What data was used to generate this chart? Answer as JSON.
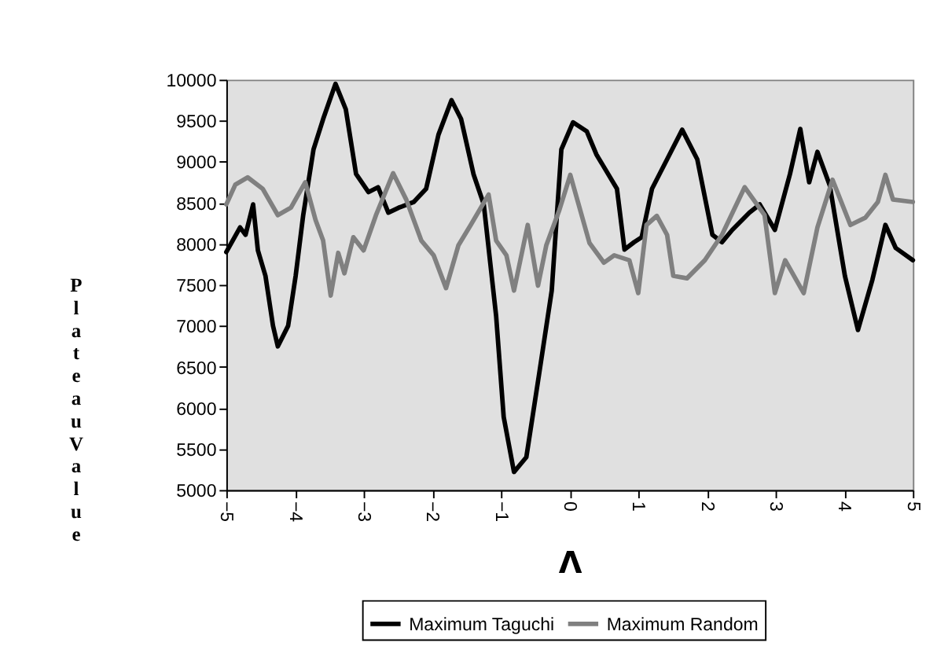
{
  "chart_data": {
    "type": "line",
    "xlabel": "Λ",
    "ylabel": "Plateau Value",
    "xlim": [
      -5,
      5
    ],
    "xticks": [
      -5,
      -4,
      -3,
      -2,
      -1,
      0,
      1,
      2,
      3,
      4,
      5
    ],
    "ylim": [
      5000,
      10000
    ],
    "yticks": [
      5000,
      5500,
      6000,
      6500,
      7000,
      7500,
      8000,
      8500,
      9000,
      9500,
      10000
    ],
    "grid": false,
    "legend": "bottom",
    "marker": "none",
    "line_style": "solid",
    "series": [
      {
        "name": "Maximum Taguchi",
        "color": "#000000",
        "x": [
          -5.0,
          -4.8,
          -4.72,
          -4.61,
          -4.54,
          -4.43,
          -4.32,
          -4.25,
          -4.1,
          -3.99,
          -3.88,
          -3.73,
          -3.59,
          -3.41,
          -3.26,
          -3.11,
          -2.93,
          -2.79,
          -2.64,
          -2.49,
          -2.27,
          -2.09,
          -1.91,
          -1.72,
          -1.58,
          -1.4,
          -1.25,
          -1.07,
          -0.96,
          -0.81,
          -0.63,
          -0.45,
          -0.26,
          -0.12,
          0.05,
          0.25,
          0.39,
          0.69,
          0.8,
          0.94,
          1.05,
          1.2,
          1.42,
          1.64,
          1.86,
          2.08,
          2.22,
          2.37,
          2.62,
          2.77,
          2.99,
          3.21,
          3.36,
          3.49,
          3.61,
          3.79,
          4.01,
          4.2,
          4.41,
          4.6,
          4.75,
          5.0
        ],
        "values": [
          7900,
          8200,
          8110,
          8480,
          7920,
          7610,
          7000,
          6750,
          7000,
          7610,
          8350,
          9150,
          9520,
          9950,
          9640,
          8850,
          8630,
          8690,
          8380,
          8440,
          8510,
          8670,
          9330,
          9750,
          9520,
          8850,
          8480,
          7120,
          5890,
          5220,
          5400,
          6380,
          7430,
          9150,
          9480,
          9370,
          9090,
          8670,
          7930,
          8020,
          8080,
          8670,
          9030,
          9390,
          9030,
          8110,
          8020,
          8170,
          8380,
          8480,
          8170,
          8850,
          9400,
          8750,
          9120,
          8710,
          7610,
          6950,
          7560,
          8230,
          7950,
          7800
        ]
      },
      {
        "name": "Maximum Random",
        "color": "#808080",
        "x": [
          -5.0,
          -4.87,
          -4.69,
          -4.47,
          -4.25,
          -4.06,
          -3.85,
          -3.7,
          -3.59,
          -3.48,
          -3.37,
          -3.28,
          -3.15,
          -3.0,
          -2.82,
          -2.57,
          -2.38,
          -2.16,
          -1.98,
          -1.8,
          -1.62,
          -1.44,
          -1.18,
          -1.07,
          -0.92,
          -0.81,
          -0.61,
          -0.46,
          -0.34,
          -0.15,
          0.01,
          0.29,
          0.5,
          0.65,
          0.87,
          1.0,
          1.12,
          1.27,
          1.42,
          1.51,
          1.71,
          1.97,
          2.22,
          2.55,
          2.84,
          2.99,
          3.14,
          3.41,
          3.61,
          3.83,
          4.09,
          4.31,
          4.49,
          4.6,
          4.71,
          5.0
        ],
        "values": [
          8480,
          8720,
          8810,
          8670,
          8350,
          8440,
          8750,
          8290,
          8040,
          7370,
          7890,
          7640,
          8080,
          7920,
          8350,
          8860,
          8540,
          8040,
          7860,
          7460,
          7980,
          8230,
          8600,
          8040,
          7860,
          7430,
          8230,
          7490,
          7980,
          8410,
          8840,
          8010,
          7770,
          7860,
          7800,
          7400,
          8230,
          8340,
          8110,
          7610,
          7580,
          7800,
          8110,
          8690,
          8350,
          7400,
          7800,
          7400,
          8200,
          8780,
          8230,
          8320,
          8510,
          8840,
          8540,
          8510
        ]
      }
    ]
  }
}
